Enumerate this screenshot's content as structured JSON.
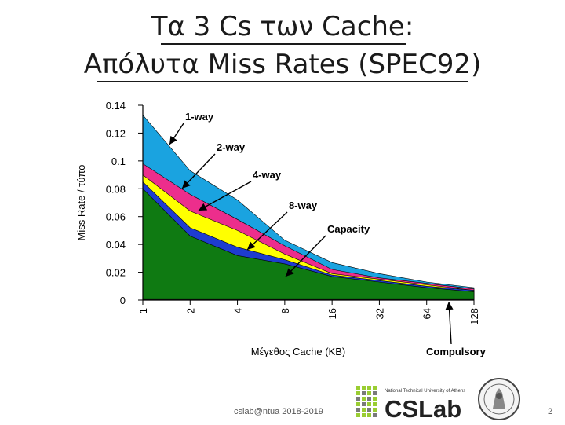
{
  "slide": {
    "title_line1": "Τα 3 Cs των Cache:",
    "title_line2": "Απόλυτα Miss Rates (SPEC92)",
    "footer": "cslab@ntua 2018-2019",
    "page_number": "2",
    "logo": {
      "text": "CSLab",
      "tagline": "National Technical University of Athens",
      "seal_label": "NTUA seal"
    }
  },
  "chart_data": {
    "type": "area",
    "title": "",
    "xlabel": "Μέγεθος Cache (KB)",
    "ylabel": "Miss Rate / τύπο",
    "categories": [
      "1",
      "2",
      "4",
      "8",
      "16",
      "32",
      "64",
      "128"
    ],
    "ylim": [
      0,
      0.14
    ],
    "yticks": [
      "0",
      "0.02",
      "0.04",
      "0.06",
      "0.08",
      "0.1",
      "0.12",
      "0.14"
    ],
    "grid": false,
    "series": [
      {
        "name": "1-way",
        "color": "#1aa3e0",
        "values": [
          0.133,
          0.093,
          0.072,
          0.043,
          0.027,
          0.019,
          0.013,
          0.009
        ]
      },
      {
        "name": "2-way",
        "color": "#ec2e8c",
        "values": [
          0.098,
          0.076,
          0.058,
          0.039,
          0.022,
          0.016,
          0.012,
          0.008
        ]
      },
      {
        "name": "4-way",
        "color": "#ffff00",
        "values": [
          0.09,
          0.064,
          0.05,
          0.033,
          0.019,
          0.015,
          0.011,
          0.007
        ]
      },
      {
        "name": "8-way",
        "color": "#1e3cd0",
        "values": [
          0.085,
          0.052,
          0.038,
          0.029,
          0.018,
          0.014,
          0.01,
          0.007
        ]
      },
      {
        "name": "Capacity",
        "color": "#0f7a12",
        "values": [
          0.08,
          0.046,
          0.032,
          0.026,
          0.017,
          0.013,
          0.009,
          0.006
        ]
      },
      {
        "name": "Compulsory",
        "color": "#111111",
        "values": [
          0.001,
          0.001,
          0.001,
          0.001,
          0.001,
          0.001,
          0.001,
          0.001
        ]
      }
    ],
    "annotations": [
      {
        "text": "1-way",
        "series": "1-way",
        "category": "1"
      },
      {
        "text": "2-way",
        "series": "2-way",
        "category": "2"
      },
      {
        "text": "4-way",
        "series": "4-way",
        "category": "2"
      },
      {
        "text": "8-way",
        "series": "8-way",
        "category": "8"
      },
      {
        "text": "Capacity",
        "series": "Capacity",
        "category": "16"
      },
      {
        "text": "Compulsory",
        "series": "Compulsory",
        "category": "64"
      }
    ]
  }
}
